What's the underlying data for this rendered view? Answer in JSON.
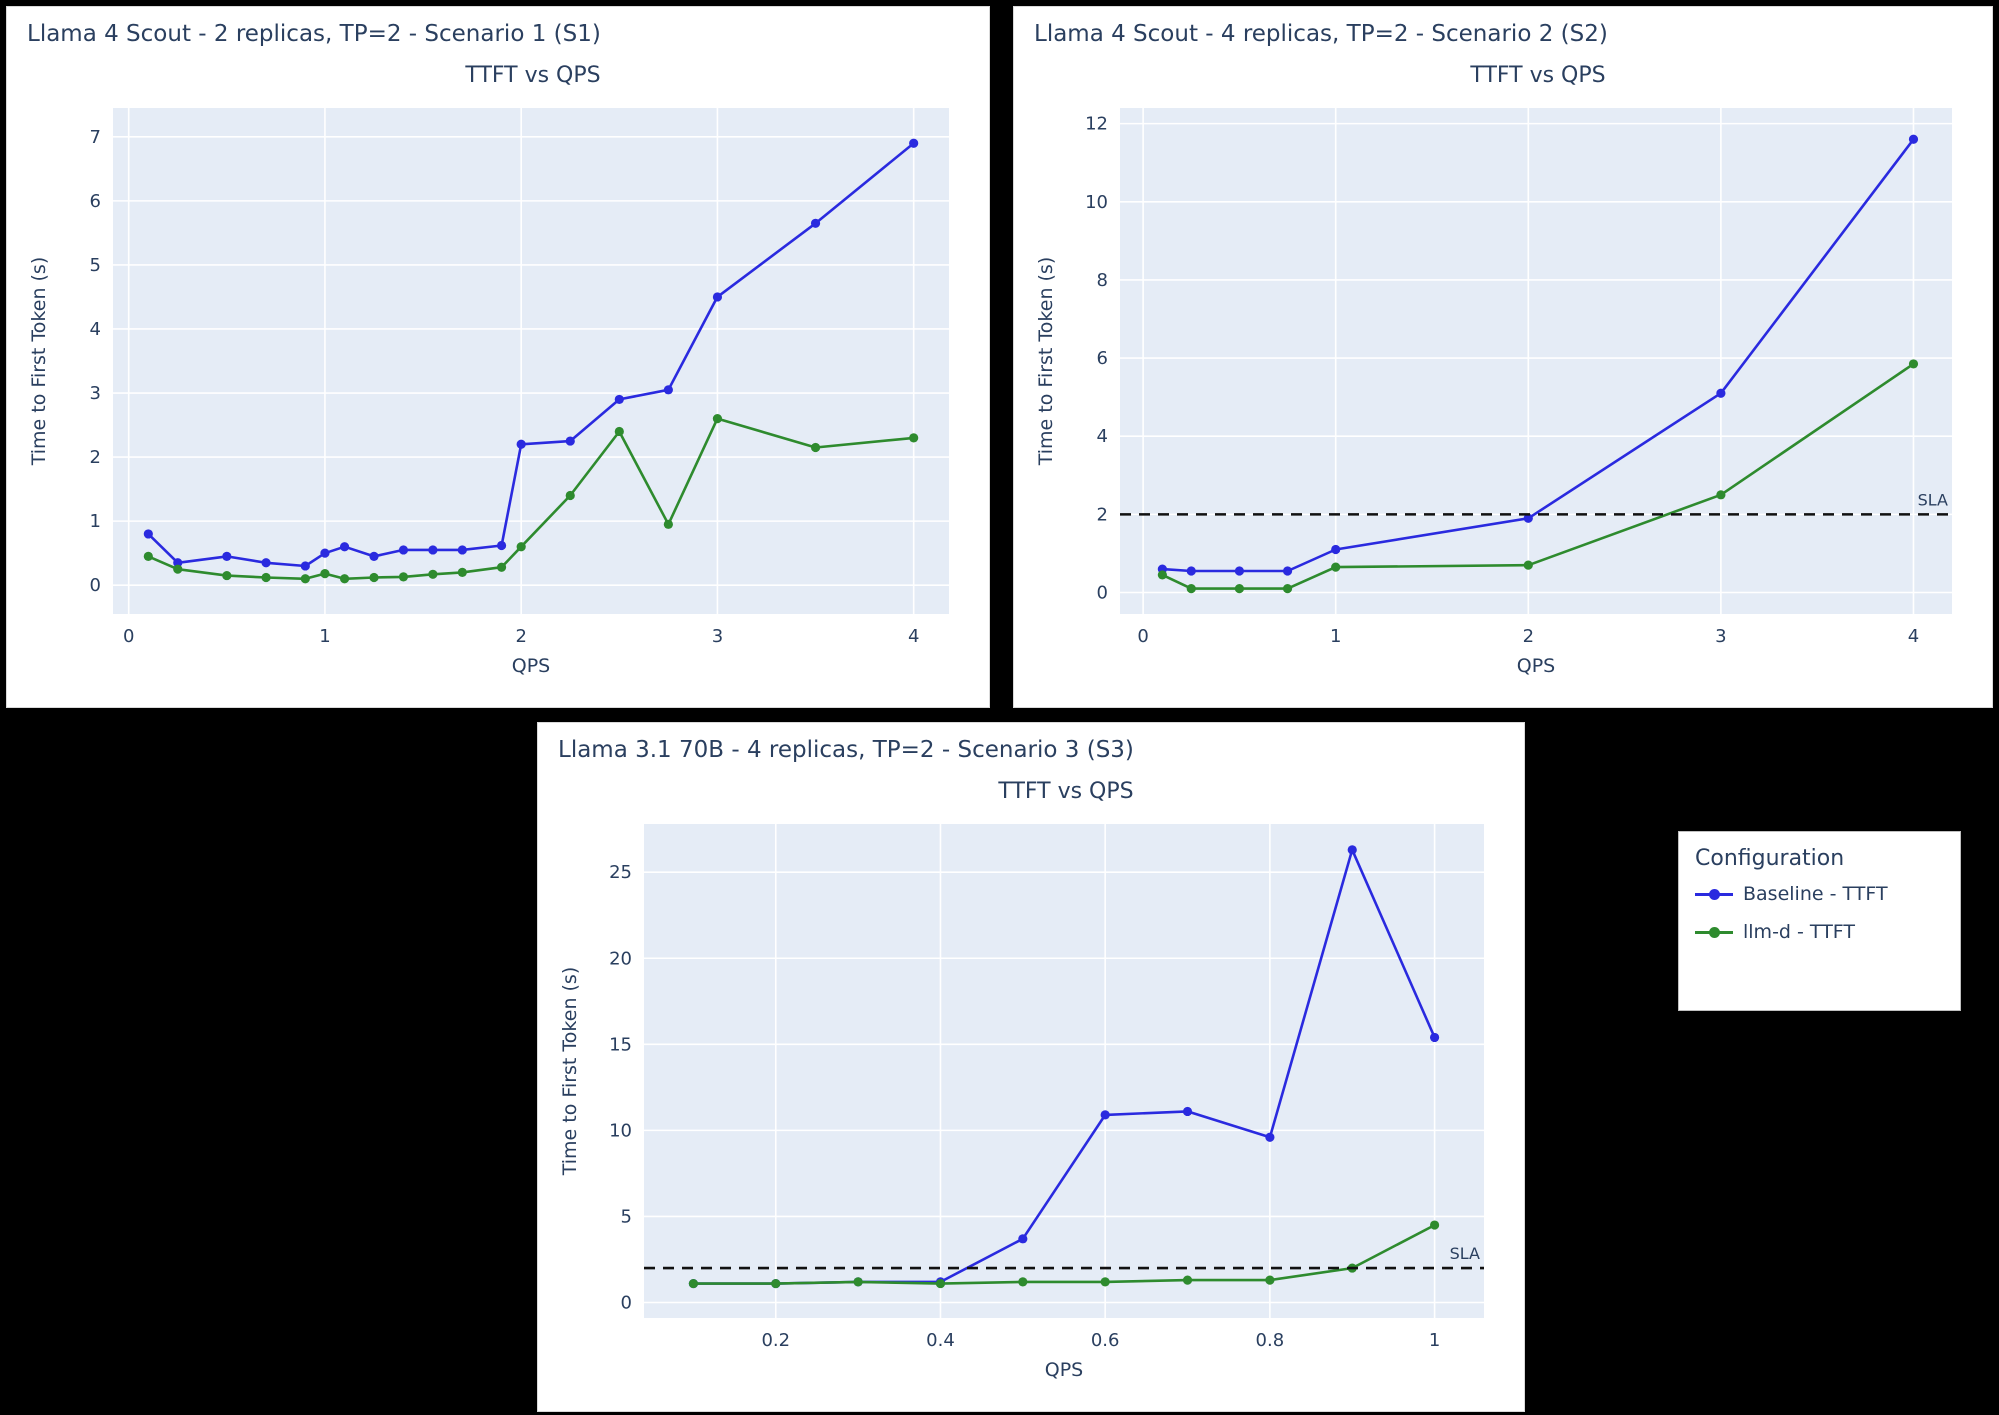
{
  "legend": {
    "title": "Configuration",
    "items": [
      {
        "label": "Baseline - TTFT",
        "color": "#2a2adf"
      },
      {
        "label": "llm-d - TTFT",
        "color": "#2e8b2e"
      }
    ]
  },
  "style": {
    "plot_bg": "#e5ecf6",
    "grid": "#ffffff",
    "text": "#2a3f5f",
    "sla_color": "#111111"
  },
  "chart_data": [
    {
      "panel_title": "Llama 4 Scout - 2 replicas, TP=2  - Scenario 1 (S1)",
      "type": "line",
      "title": "TTFT vs QPS",
      "xlabel": "QPS",
      "ylabel": "Time to First Token (s)",
      "xlim": [
        -0.08,
        4.18
      ],
      "ylim": [
        -0.45,
        7.45
      ],
      "xticks": [
        0,
        1,
        2,
        3,
        4
      ],
      "yticks": [
        0,
        1,
        2,
        3,
        4,
        5,
        6,
        7
      ],
      "sla": null,
      "series": [
        {
          "name": "Baseline - TTFT",
          "color": "#2a2adf",
          "x": [
            0.1,
            0.25,
            0.5,
            0.7,
            0.9,
            1.0,
            1.1,
            1.25,
            1.4,
            1.55,
            1.7,
            1.9,
            2.0,
            2.25,
            2.5,
            2.75,
            3.0,
            3.5,
            4.0
          ],
          "y": [
            0.8,
            0.35,
            0.45,
            0.35,
            0.3,
            0.5,
            0.6,
            0.45,
            0.55,
            0.55,
            0.55,
            0.62,
            2.2,
            2.25,
            2.9,
            3.05,
            4.5,
            5.65,
            6.9
          ]
        },
        {
          "name": "llm-d - TTFT",
          "color": "#2e8b2e",
          "x": [
            0.1,
            0.25,
            0.5,
            0.7,
            0.9,
            1.0,
            1.1,
            1.25,
            1.4,
            1.55,
            1.7,
            1.9,
            2.0,
            2.25,
            2.5,
            2.75,
            3.0,
            3.5,
            4.0
          ],
          "y": [
            0.45,
            0.25,
            0.15,
            0.12,
            0.1,
            0.18,
            0.1,
            0.12,
            0.13,
            0.17,
            0.2,
            0.28,
            0.6,
            1.4,
            2.4,
            0.95,
            2.6,
            2.15,
            2.3
          ]
        }
      ]
    },
    {
      "panel_title": "Llama 4 Scout - 4 replicas, TP=2 - Scenario 2 (S2)",
      "type": "line",
      "title": "TTFT vs QPS",
      "xlabel": "QPS",
      "ylabel": "Time to First Token (s)",
      "xlim": [
        -0.12,
        4.2
      ],
      "ylim": [
        -0.55,
        12.4
      ],
      "xticks": [
        0,
        1,
        2,
        3,
        4
      ],
      "yticks": [
        0,
        2,
        4,
        6,
        8,
        10,
        12
      ],
      "sla": {
        "y": 2,
        "label": "SLA"
      },
      "series": [
        {
          "name": "Baseline - TTFT",
          "color": "#2a2adf",
          "x": [
            0.1,
            0.25,
            0.5,
            0.75,
            1.0,
            2.0,
            3.0,
            4.0
          ],
          "y": [
            0.6,
            0.55,
            0.55,
            0.55,
            1.1,
            1.9,
            5.1,
            11.6
          ]
        },
        {
          "name": "llm-d - TTFT",
          "color": "#2e8b2e",
          "x": [
            0.1,
            0.25,
            0.5,
            0.75,
            1.0,
            2.0,
            3.0,
            4.0
          ],
          "y": [
            0.45,
            0.1,
            0.1,
            0.1,
            0.65,
            0.7,
            2.5,
            5.85
          ]
        }
      ]
    },
    {
      "panel_title": "Llama 3.1 70B - 4 replicas, TP=2  - Scenario 3 (S3)",
      "type": "line",
      "title": "TTFT vs QPS",
      "xlabel": "QPS",
      "ylabel": "Time to First Token (s)",
      "xlim": [
        0.04,
        1.06
      ],
      "ylim": [
        -0.9,
        27.8
      ],
      "xticks": [
        0.2,
        0.4,
        0.6,
        0.8,
        1
      ],
      "yticks": [
        0,
        5,
        10,
        15,
        20,
        25
      ],
      "sla": {
        "y": 2,
        "label": "SLA"
      },
      "series": [
        {
          "name": "Baseline - TTFT",
          "color": "#2a2adf",
          "x": [
            0.1,
            0.2,
            0.3,
            0.4,
            0.5,
            0.6,
            0.7,
            0.8,
            0.9,
            1.0
          ],
          "y": [
            1.1,
            1.1,
            1.2,
            1.2,
            3.7,
            10.9,
            11.1,
            9.6,
            26.3,
            15.4
          ]
        },
        {
          "name": "llm-d - TTFT",
          "color": "#2e8b2e",
          "x": [
            0.1,
            0.2,
            0.3,
            0.4,
            0.5,
            0.6,
            0.7,
            0.8,
            0.9,
            1.0
          ],
          "y": [
            1.1,
            1.1,
            1.2,
            1.1,
            1.2,
            1.2,
            1.3,
            1.3,
            2.0,
            4.5
          ]
        }
      ]
    }
  ]
}
